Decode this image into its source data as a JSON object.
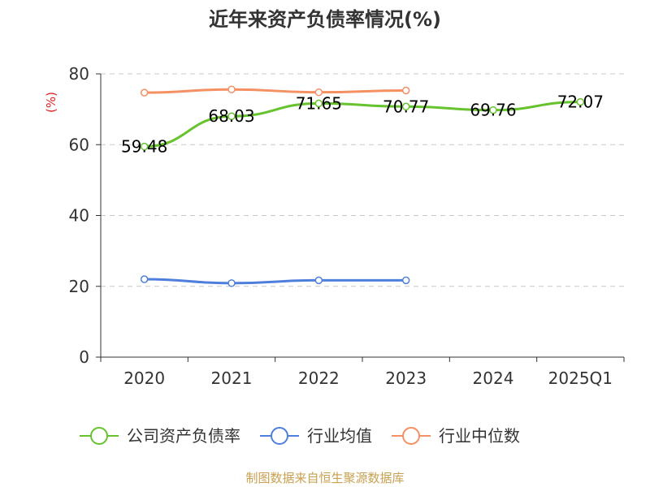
{
  "chart_data": {
    "type": "line",
    "title": "近年来资产负债率情况(%)",
    "ylabel": "(%)",
    "categories": [
      "2020",
      "2021",
      "2022",
      "2023",
      "2024",
      "2025Q1"
    ],
    "ylim": [
      0,
      80
    ],
    "yticks": [
      "0",
      "20",
      "40",
      "60",
      "80"
    ],
    "grid": true,
    "legend_position": "bottom",
    "series": [
      {
        "name": "公司资产负债率",
        "color": "#66c32e",
        "values": [
          59.48,
          68.03,
          71.65,
          70.77,
          69.76,
          72.07
        ],
        "labels": [
          "59.48",
          "68.03",
          "71.65",
          "70.77",
          "69.76",
          "72.07"
        ]
      },
      {
        "name": "行业均值",
        "color": "#4e7fdc",
        "values": [
          22.0,
          20.9,
          21.7,
          21.7,
          null,
          null
        ]
      },
      {
        "name": "行业中位数",
        "color": "#f59062",
        "values": [
          74.7,
          75.6,
          74.8,
          75.3,
          null,
          null
        ]
      }
    ],
    "source": "制图数据来自恒生聚源数据库"
  }
}
